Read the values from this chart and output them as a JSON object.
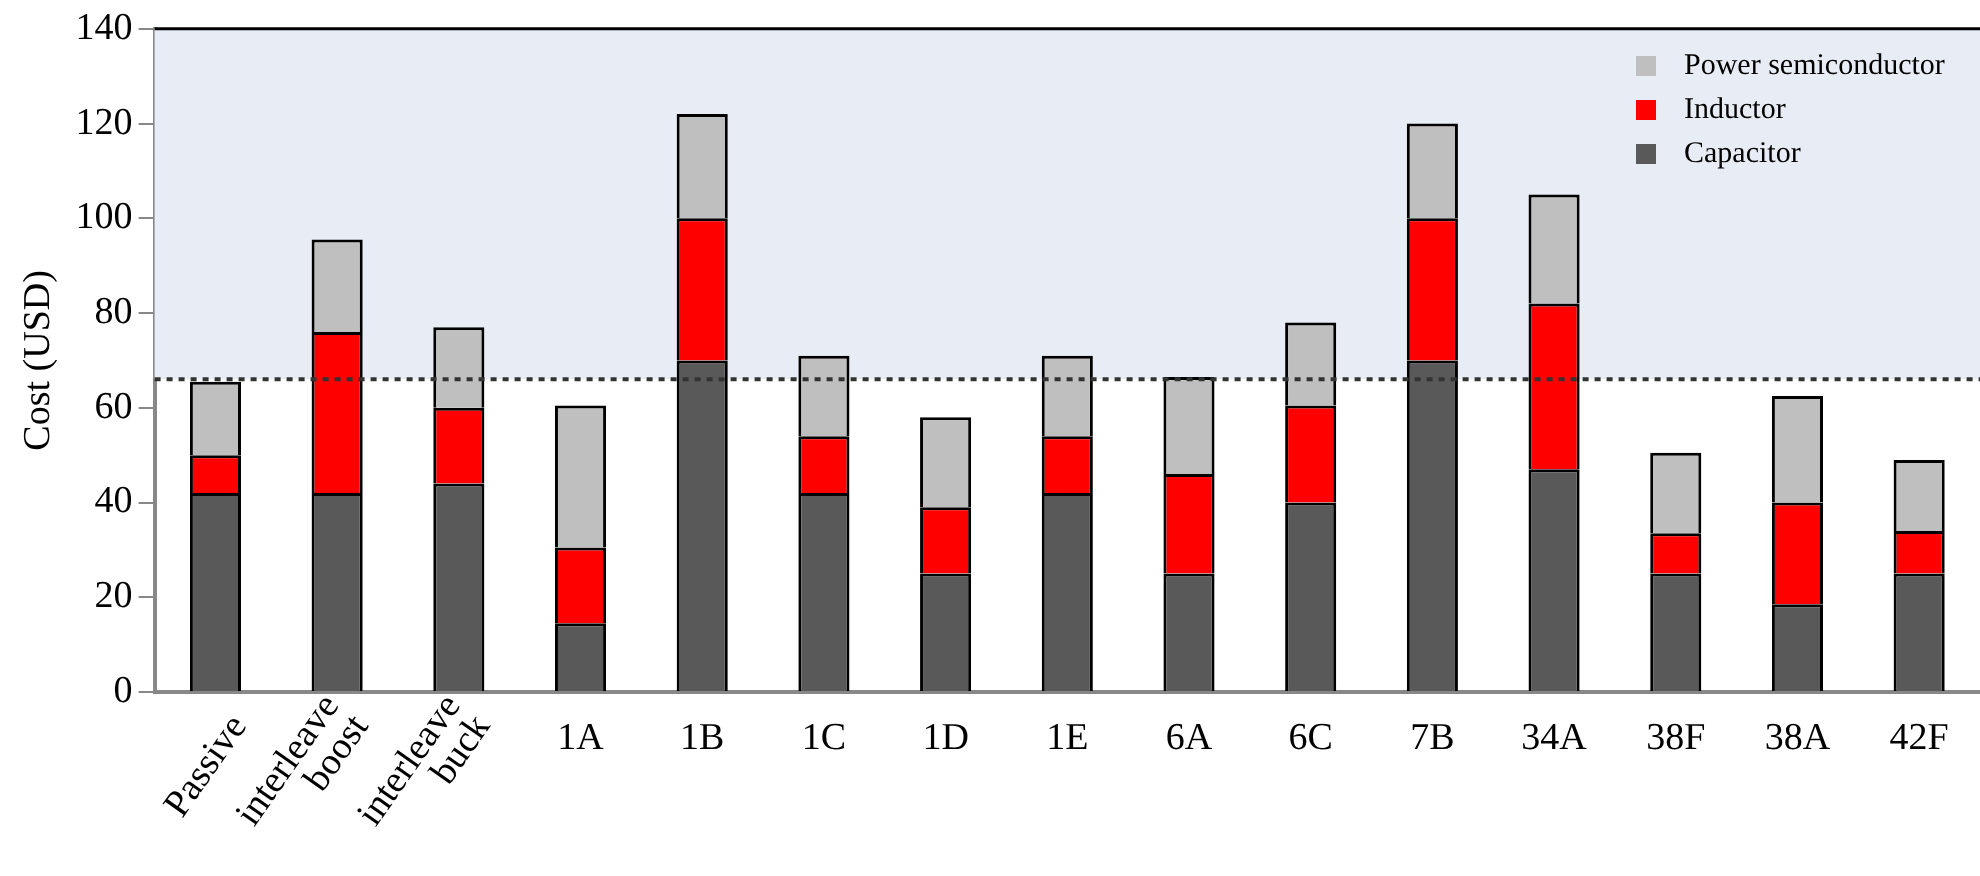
{
  "chart_data": {
    "type": "bar",
    "stacked": true,
    "ylabel": "Cost (USD)",
    "categories": [
      "Passive",
      "interleave boost",
      "interleave buck",
      "1A",
      "1B",
      "1C",
      "1D",
      "1E",
      "6A",
      "6C",
      "7B",
      "34A",
      "38F",
      "38A",
      "42F"
    ],
    "series": [
      {
        "name": "Capacitor",
        "color": "#595959",
        "values": [
          42,
          42,
          44,
          14.5,
          70,
          42,
          25,
          42,
          25,
          40,
          70,
          47,
          25,
          18.5,
          25
        ]
      },
      {
        "name": "Inductor",
        "color": "#ff0000",
        "values": [
          8,
          34,
          16,
          16,
          30,
          12,
          14,
          12,
          21,
          20.5,
          30,
          35,
          8.5,
          21.5,
          9
        ]
      },
      {
        "name": "Power semiconductor",
        "color": "#bfbfbf",
        "values": [
          15.5,
          19.5,
          17,
          30,
          22,
          17,
          19,
          17,
          20.5,
          17.5,
          20,
          23,
          17,
          22.5,
          15
        ]
      }
    ],
    "ylim": [
      0,
      140
    ],
    "yticks": [
      0,
      20,
      40,
      60,
      80,
      100,
      120,
      140
    ],
    "grid": false,
    "legend": "top right",
    "ref_lines": [
      {
        "axis": "y",
        "value": 66,
        "line_style": "dotted",
        "color": "#333333"
      }
    ],
    "bands": [
      {
        "axis": "y",
        "from": 66,
        "to": 140,
        "color": "#e8ecf4"
      }
    ]
  }
}
